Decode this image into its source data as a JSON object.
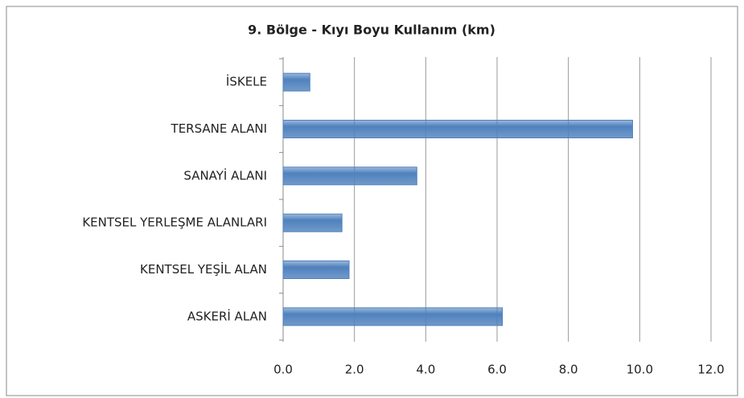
{
  "chart_data": {
    "type": "bar",
    "orientation": "horizontal",
    "title": "9. Bölge - Kıyı Boyu Kullanım (km)",
    "categories": [
      "İSKELE",
      "TERSANE ALANI",
      "SANAYİ ALANI",
      "KENTSEL YERLEŞME ALANLARI",
      "KENTSEL YEŞİL ALAN",
      "ASKERİ ALAN"
    ],
    "values": [
      0.75,
      9.8,
      3.75,
      1.65,
      1.85,
      6.15
    ],
    "color": "#4f81bd",
    "xlim": [
      0,
      12
    ],
    "xticks": [
      {
        "value": 0,
        "label": "0.0"
      },
      {
        "value": 2,
        "label": "2.0"
      },
      {
        "value": 4,
        "label": "4.0"
      },
      {
        "value": 6,
        "label": "6.0"
      },
      {
        "value": 8,
        "label": "8.0"
      },
      {
        "value": 10,
        "label": "10.0"
      },
      {
        "value": 12,
        "label": "12.0"
      }
    ],
    "grid": true
  }
}
